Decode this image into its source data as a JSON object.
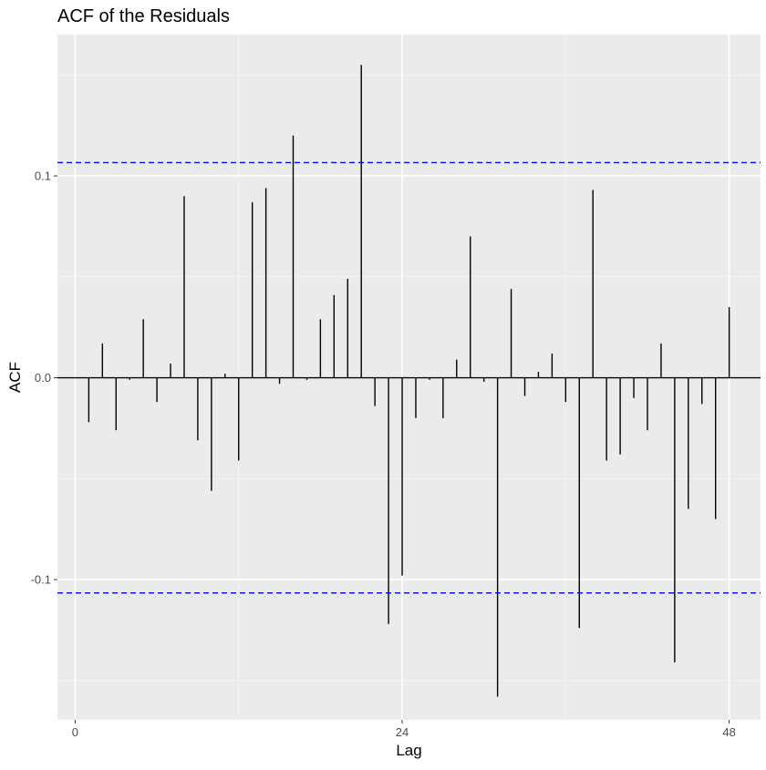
{
  "chart_data": {
    "type": "bar",
    "title": "ACF of the Residuals",
    "xlabel": "Lag",
    "ylabel": "ACF",
    "x_ticks": [
      0,
      24,
      48
    ],
    "y_ticks": [
      -0.1,
      0.0,
      0.1
    ],
    "y_tick_labels": [
      "-0.1",
      "0.0",
      "0.1"
    ],
    "xlim": [
      -1.3,
      50.3
    ],
    "ylim": [
      -0.1695,
      0.17
    ],
    "confidence_bounds": [
      0.1066,
      -0.1066
    ],
    "grid": true,
    "legend": "none",
    "lags": [
      1,
      2,
      3,
      4,
      5,
      6,
      7,
      8,
      9,
      10,
      11,
      12,
      13,
      14,
      15,
      16,
      17,
      18,
      19,
      20,
      21,
      22,
      23,
      24,
      25,
      26,
      27,
      28,
      29,
      30,
      31,
      32,
      33,
      34,
      35,
      36,
      37,
      38,
      39,
      40,
      41,
      42,
      43,
      44,
      45,
      46,
      47,
      48
    ],
    "values": [
      -0.022,
      0.017,
      -0.026,
      -0.001,
      0.029,
      -0.012,
      0.007,
      0.09,
      -0.031,
      -0.056,
      0.002,
      -0.041,
      0.087,
      0.094,
      -0.003,
      0.12,
      -0.001,
      0.029,
      0.041,
      0.049,
      0.155,
      -0.014,
      -0.122,
      -0.098,
      -0.02,
      -0.001,
      -0.02,
      0.009,
      0.07,
      -0.002,
      -0.158,
      0.044,
      -0.009,
      0.003,
      0.012,
      -0.012,
      -0.124,
      0.093,
      -0.041,
      -0.038,
      -0.01,
      -0.026,
      0.017,
      -0.141,
      -0.065,
      -0.013,
      -0.07,
      0.035
    ]
  },
  "colors": {
    "panel_background": "#EBEBEB",
    "grid_major": "#FFFFFF",
    "grid_minor": "#F5F5F5",
    "bars": "#000000",
    "confidence_line": "#0000FF",
    "tick_labels": "#4D4D4D"
  }
}
